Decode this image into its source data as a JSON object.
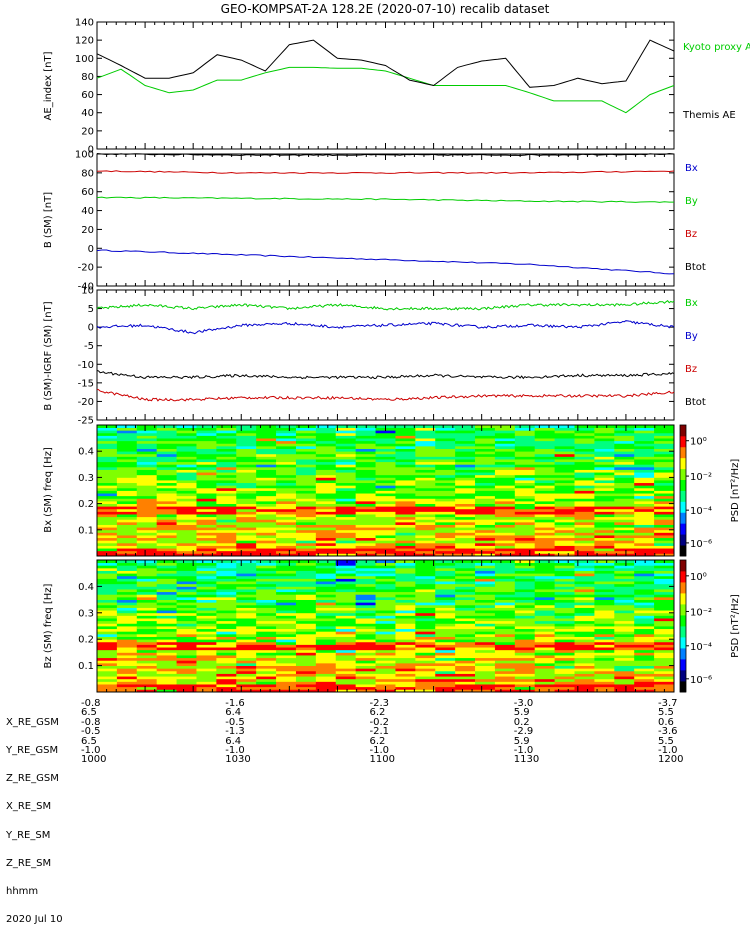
{
  "title": "GEO-KOMPSAT-2A 128.2E (2020-07-10) recalib dataset",
  "time_axis": {
    "x_range": [
      "10:00",
      "12:00"
    ]
  },
  "colorbar": {
    "label": "PSD [nT²/Hz]",
    "tick_labels": [
      "10⁰",
      "10⁻²",
      "10⁻⁴",
      "10⁻⁶"
    ],
    "colors": [
      "#000000",
      "#000080",
      "#0000ff",
      "#0080ff",
      "#00ffff",
      "#00ff80",
      "#00ff00",
      "#80ff00",
      "#ffff00",
      "#ff8000",
      "#ff0000",
      "#800000"
    ]
  },
  "chart_data": [
    {
      "type": "line",
      "ylabel": "AE_index [nT]",
      "ylim": [
        0,
        140
      ],
      "yticks": [
        0,
        20,
        40,
        60,
        80,
        100,
        120,
        140
      ],
      "x": [
        "10:00",
        "10:05",
        "10:10",
        "10:15",
        "10:20",
        "10:25",
        "10:30",
        "10:35",
        "10:40",
        "10:45",
        "10:50",
        "10:55",
        "11:00",
        "11:05",
        "11:10",
        "11:15",
        "11:20",
        "11:25",
        "11:30",
        "11:35",
        "11:40",
        "11:45",
        "11:50",
        "11:55",
        "12:00"
      ],
      "series": [
        {
          "name": "Kyoto proxy AE",
          "color": "#00cc00",
          "values": [
            78,
            88,
            70,
            62,
            65,
            76,
            76,
            84,
            90,
            90,
            89,
            89,
            86,
            78,
            70,
            70,
            70,
            70,
            62,
            53,
            53,
            53,
            40,
            60,
            70
          ]
        },
        {
          "name": "Themis AE",
          "color": "#000000",
          "values": [
            105,
            92,
            78,
            78,
            84,
            104,
            98,
            86,
            115,
            120,
            100,
            98,
            92,
            76,
            70,
            90,
            97,
            100,
            68,
            70,
            78,
            72,
            75,
            120,
            108
          ]
        }
      ]
    },
    {
      "type": "line",
      "ylabel": "B (SM) [nT]",
      "ylim": [
        -40,
        100
      ],
      "yticks": [
        -40,
        -20,
        0,
        20,
        40,
        60,
        80,
        100
      ],
      "x": [
        "10:00",
        "10:30",
        "11:00",
        "11:30",
        "12:00"
      ],
      "series": [
        {
          "name": "Bx",
          "color": "#0000cc",
          "values": [
            -2,
            -7,
            -12,
            -17,
            -27
          ]
        },
        {
          "name": "By",
          "color": "#00cc00",
          "values": [
            54,
            53,
            52,
            50,
            49
          ]
        },
        {
          "name": "Bz",
          "color": "#cc0000",
          "values": [
            82,
            80,
            80,
            80,
            82
          ]
        },
        {
          "name": "Btot",
          "color": "#000000",
          "values": [
            100,
            99,
            99,
            99,
            100
          ]
        }
      ]
    },
    {
      "type": "line",
      "ylabel": "B (SM)-IGRF (SM) [nT]",
      "ylim": [
        -25,
        10
      ],
      "yticks": [
        -25,
        -20,
        -15,
        -10,
        -5,
        0,
        5,
        10
      ],
      "x": [
        "10:00",
        "10:10",
        "10:20",
        "10:30",
        "10:40",
        "10:50",
        "11:00",
        "11:10",
        "11:20",
        "11:30",
        "11:40",
        "11:50",
        "12:00"
      ],
      "series": [
        {
          "name": "Bx",
          "color": "#00cc00",
          "values": [
            5,
            6,
            5,
            6,
            5,
            6,
            5,
            5,
            5,
            6,
            6,
            6,
            7
          ]
        },
        {
          "name": "By",
          "color": "#0000cc",
          "values": [
            0,
            0.5,
            -1.5,
            0.5,
            1,
            0,
            0.5,
            1,
            0,
            0.5,
            0,
            1.5,
            0
          ]
        },
        {
          "name": "Bz",
          "color": "#cc0000",
          "values": [
            -17,
            -19.5,
            -19.5,
            -19,
            -19,
            -19,
            -19.5,
            -19,
            -18.5,
            -18.5,
            -18.5,
            -18.5,
            -17.5
          ]
        },
        {
          "name": "Btot",
          "color": "#000000",
          "values": [
            -12,
            -13.5,
            -13.5,
            -13,
            -13.5,
            -13.5,
            -13.5,
            -13,
            -13.5,
            -13.5,
            -13,
            -13,
            -12.5
          ]
        }
      ]
    },
    {
      "type": "heatmap",
      "ylabel": "Bx (SM) freq [Hz]",
      "ylim": [
        0,
        0.5
      ],
      "yticks": [
        0.1,
        0.2,
        0.3,
        0.4
      ],
      "colorbar_label": "PSD [nT²/Hz]"
    },
    {
      "type": "heatmap",
      "ylabel": "Bz (SM) freq [Hz]",
      "ylim": [
        0,
        0.5
      ],
      "yticks": [
        0.1,
        0.2,
        0.3,
        0.4
      ],
      "colorbar_label": "PSD [nT²/Hz]"
    }
  ],
  "ephemeris": {
    "row_labels": [
      "X_RE_GSM",
      "Y_RE_GSM",
      "Z_RE_GSM",
      "X_RE_SM",
      "Y_RE_SM",
      "Z_RE_SM",
      "hhmm",
      "2020 Jul 10"
    ],
    "columns": [
      [
        "-0.8",
        "6.5",
        "-0.8",
        "-0.5",
        "6.5",
        "-1.0",
        "1000"
      ],
      [
        "-1.6",
        "6.4",
        "-0.5",
        "-1.3",
        "6.4",
        "-1.0",
        "1030"
      ],
      [
        "-2.3",
        "6.2",
        "-0.2",
        "-2.1",
        "6.2",
        "-1.0",
        "1100"
      ],
      [
        "-3.0",
        "5.9",
        "0.2",
        "-2.9",
        "5.9",
        "-1.0",
        "1130"
      ],
      [
        "-3.7",
        "5.5",
        "0.6",
        "-3.6",
        "5.5",
        "-1.0",
        "1200"
      ]
    ]
  }
}
